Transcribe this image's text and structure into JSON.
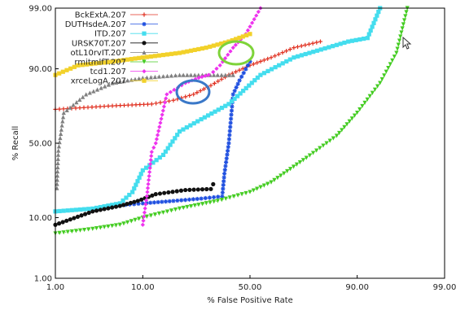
{
  "chart_data": {
    "type": "line",
    "xlabel": "% False Positive Rate",
    "ylabel": "% Recall",
    "x_ticks": [
      "1.00",
      "10.00",
      "50.00",
      "90.00",
      "99.00"
    ],
    "y_ticks": [
      "1.00",
      "10.00",
      "50.00",
      "90.00",
      "99.00"
    ],
    "scale": "normal-deviate (probit) on both axes",
    "grid": false,
    "legend_position": "top-left",
    "series": [
      {
        "name": "BckExtA.207",
        "color": "#e03020",
        "marker": "plus",
        "points": [
          [
            1.0,
            72
          ],
          [
            5,
            74
          ],
          [
            12,
            75
          ],
          [
            18,
            77
          ],
          [
            25,
            80
          ],
          [
            32,
            84
          ],
          [
            40,
            88
          ],
          [
            50,
            91
          ],
          [
            60,
            93
          ],
          [
            70,
            95
          ],
          [
            80,
            96
          ]
        ]
      },
      {
        "name": "DUTHsdeA.207",
        "color": "#2050e0",
        "marker": "star",
        "points": [
          [
            5,
            14
          ],
          [
            10,
            15
          ],
          [
            18,
            16
          ],
          [
            28,
            17
          ],
          [
            37,
            18
          ],
          [
            38,
            30
          ],
          [
            40,
            50
          ],
          [
            42,
            80
          ],
          [
            45,
            86
          ],
          [
            50,
            92
          ]
        ]
      },
      {
        "name": "ITD.207",
        "color": "#44ddee",
        "marker": "square",
        "points": [
          [
            1.0,
            12
          ],
          [
            3,
            13
          ],
          [
            6,
            15
          ],
          [
            8,
            20
          ],
          [
            10,
            32
          ],
          [
            15,
            42
          ],
          [
            20,
            58
          ],
          [
            28,
            66
          ],
          [
            40,
            75
          ],
          [
            55,
            88
          ],
          [
            70,
            93
          ],
          [
            88,
            96
          ],
          [
            92,
            96.5
          ],
          [
            94,
            99
          ]
        ]
      },
      {
        "name": "URSK70T.207",
        "color": "#111111",
        "marker": "circle",
        "points": [
          [
            1.0,
            8
          ],
          [
            3,
            12
          ],
          [
            6,
            14
          ],
          [
            9,
            16
          ],
          [
            13,
            19
          ],
          [
            22,
            21
          ],
          [
            32,
            21.5
          ],
          [
            33,
            24
          ]
        ]
      },
      {
        "name": "otL10rvIT.207",
        "color": "#808080",
        "marker": "triangle",
        "points": [
          [
            1.05,
            22
          ],
          [
            1.1,
            45
          ],
          [
            1.3,
            70
          ],
          [
            2.5,
            80
          ],
          [
            5,
            85
          ],
          [
            10,
            87
          ],
          [
            20,
            88
          ],
          [
            30,
            88
          ],
          [
            42,
            88
          ]
        ]
      },
      {
        "name": "rmitmlfT.207",
        "color": "#44cc22",
        "marker": "triangle-down",
        "points": [
          [
            1.0,
            6
          ],
          [
            3,
            7
          ],
          [
            6,
            8
          ],
          [
            10,
            10
          ],
          [
            20,
            13
          ],
          [
            35,
            16
          ],
          [
            50,
            20
          ],
          [
            60,
            25
          ],
          [
            75,
            40
          ],
          [
            85,
            55
          ],
          [
            90,
            70
          ],
          [
            94,
            85
          ],
          [
            96,
            94
          ],
          [
            97,
            99
          ]
        ]
      },
      {
        "name": "tcd1.207",
        "color": "#ee33ee",
        "marker": "diamond",
        "points": [
          [
            10,
            8
          ],
          [
            11,
            20
          ],
          [
            12,
            44
          ],
          [
            13,
            50
          ],
          [
            16,
            80
          ],
          [
            22,
            85
          ],
          [
            27,
            87
          ],
          [
            31,
            88
          ],
          [
            33,
            89
          ],
          [
            36,
            91
          ],
          [
            42,
            95
          ],
          [
            48,
            97
          ],
          [
            55,
            99
          ]
        ]
      },
      {
        "name": "xrceLogA.207",
        "color": "#f2d12a",
        "marker": "square",
        "points": [
          [
            1.0,
            88
          ],
          [
            2,
            91
          ],
          [
            5,
            92
          ],
          [
            10,
            93
          ],
          [
            20,
            94
          ],
          [
            30,
            95
          ],
          [
            40,
            96
          ],
          [
            50,
            97
          ]
        ]
      }
    ]
  }
}
